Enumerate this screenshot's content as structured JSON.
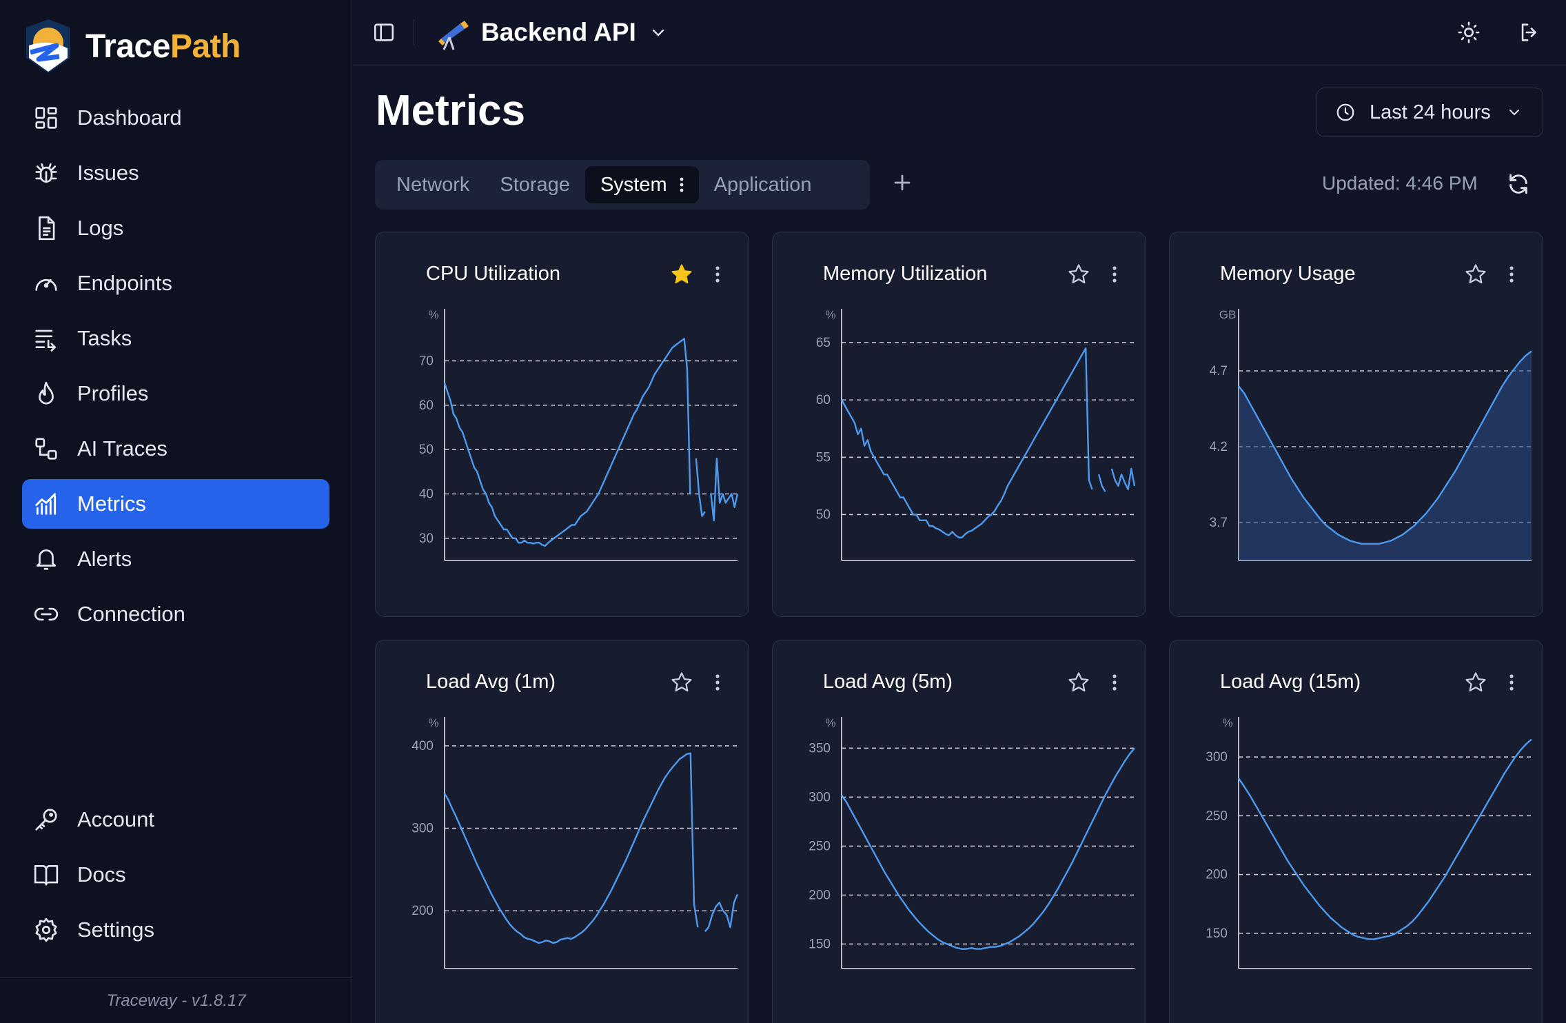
{
  "app": {
    "name_part1": "Trace",
    "name_part2": "Path",
    "version": "Traceway - v1.8.17"
  },
  "sidebar": {
    "items": [
      {
        "label": "Dashboard",
        "icon": "dashboard-icon"
      },
      {
        "label": "Issues",
        "icon": "bug-icon"
      },
      {
        "label": "Logs",
        "icon": "document-icon"
      },
      {
        "label": "Endpoints",
        "icon": "gauge-icon"
      },
      {
        "label": "Tasks",
        "icon": "tasks-icon"
      },
      {
        "label": "Profiles",
        "icon": "flame-icon"
      },
      {
        "label": "AI Traces",
        "icon": "workflow-icon"
      },
      {
        "label": "Metrics",
        "icon": "chart-icon",
        "active": true
      },
      {
        "label": "Alerts",
        "icon": "bell-icon"
      },
      {
        "label": "Connection",
        "icon": "link-icon"
      }
    ],
    "bottom_items": [
      {
        "label": "Account",
        "icon": "key-icon"
      },
      {
        "label": "Docs",
        "icon": "book-icon"
      },
      {
        "label": "Settings",
        "icon": "gear-icon"
      }
    ]
  },
  "topbar": {
    "project": "Backend API"
  },
  "page": {
    "title": "Metrics",
    "time_range": "Last 24 hours",
    "updated": "Updated: 4:46 PM",
    "tabs": [
      "Network",
      "Storage",
      "System",
      "Application"
    ],
    "active_tab": "System"
  },
  "colors": {
    "accent": "#2563eb",
    "line": "#4d9bf0",
    "star_filled": "#f5c518",
    "brand_orange": "#f2b23a"
  },
  "charts": [
    {
      "title": "CPU Utilization",
      "starred": true
    },
    {
      "title": "Memory Utilization",
      "starred": false
    },
    {
      "title": "Memory Usage",
      "starred": false
    },
    {
      "title": "Load Avg (1m)",
      "starred": false
    },
    {
      "title": "Load Avg (5m)",
      "starred": false
    },
    {
      "title": "Load Avg (15m)",
      "starred": false
    }
  ],
  "chart_data": [
    {
      "type": "line",
      "title": "CPU Utilization",
      "unit": "%",
      "ylim": [
        25,
        78
      ],
      "ticks": [
        30,
        40,
        50,
        60,
        70
      ],
      "grid": true,
      "values": [
        65,
        63,
        61,
        58,
        57,
        55,
        54,
        52,
        50,
        48,
        46,
        45,
        43,
        41,
        40,
        38,
        37,
        35,
        34,
        33,
        32,
        32,
        31,
        30,
        30,
        29,
        29,
        29.5,
        29,
        29,
        28.8,
        29,
        29,
        28.5,
        28.3,
        29,
        29.5,
        30,
        30.5,
        31,
        31.5,
        32,
        32.5,
        33,
        33,
        34,
        35,
        35.5,
        36,
        37,
        38,
        39,
        40,
        41.5,
        43,
        44.5,
        46,
        47.5,
        49,
        50.5,
        52,
        53.5,
        55,
        56.5,
        58,
        59,
        60.5,
        62,
        63,
        64,
        65.5,
        67,
        68,
        69,
        70,
        71,
        72,
        73,
        73.5,
        74,
        74.5,
        75,
        68,
        40,
        null,
        48,
        40,
        35,
        36,
        null,
        40,
        34,
        48,
        38,
        40,
        38,
        39,
        40,
        37,
        40
      ]
    },
    {
      "type": "line",
      "title": "Memory Utilization",
      "unit": "%",
      "ylim": [
        46,
        66.5
      ],
      "ticks": [
        50,
        55,
        60,
        65
      ],
      "grid": true,
      "values": [
        60,
        59.5,
        59,
        58.5,
        58,
        57,
        57.5,
        56,
        56.5,
        55.5,
        55,
        54.5,
        54,
        53.5,
        53.5,
        53,
        52.5,
        52,
        51.5,
        51.5,
        51,
        50.5,
        50,
        50,
        49.5,
        49.5,
        49.5,
        49,
        49,
        48.8,
        48.7,
        48.5,
        48.3,
        48.2,
        48.5,
        48.2,
        48,
        48,
        48.3,
        48.5,
        48.6,
        48.8,
        49,
        49.2,
        49.5,
        49.8,
        50,
        50.3,
        50.8,
        51.2,
        51.8,
        52.5,
        53,
        53.5,
        54,
        54.5,
        55,
        55.5,
        56,
        56.5,
        57,
        57.5,
        58,
        58.5,
        59,
        59.5,
        60,
        60.5,
        61,
        61.5,
        62,
        62.5,
        63,
        63.5,
        64,
        64.5,
        53,
        52.2,
        null,
        53.5,
        52.5,
        52,
        null,
        54,
        53,
        52.5,
        53.5,
        52.8,
        52.2,
        54,
        52.5
      ]
    },
    {
      "type": "area",
      "title": "Memory Usage",
      "unit": "GB",
      "ylim": [
        3.45,
        5.0
      ],
      "ticks": [
        3.7,
        4.2,
        4.7
      ],
      "grid": true,
      "values": [
        4.6,
        4.55,
        4.48,
        4.41,
        4.34,
        4.27,
        4.2,
        4.13,
        4.06,
        3.99,
        3.93,
        3.87,
        3.82,
        3.77,
        3.72,
        3.68,
        3.65,
        3.62,
        3.6,
        3.58,
        3.57,
        3.56,
        3.56,
        3.56,
        3.56,
        3.57,
        3.58,
        3.6,
        3.62,
        3.65,
        3.68,
        3.72,
        3.76,
        3.81,
        3.86,
        3.92,
        3.98,
        4.04,
        4.11,
        4.18,
        4.25,
        4.32,
        4.39,
        4.46,
        4.53,
        4.6,
        4.66,
        4.71,
        4.76,
        4.8,
        4.83
      ]
    },
    {
      "type": "line",
      "title": "Load Avg (1m)",
      "unit": "%",
      "ylim": [
        130,
        415
      ],
      "ticks": [
        200,
        300,
        400
      ],
      "grid": true,
      "values": [
        342,
        335,
        325,
        316,
        306,
        296,
        286,
        276,
        266,
        256,
        247,
        238,
        229,
        220,
        212,
        204,
        197,
        190,
        184,
        179,
        175,
        172,
        168,
        166,
        165,
        163,
        161,
        162,
        164,
        163,
        161,
        162,
        165,
        166,
        167,
        166,
        168,
        171,
        174,
        178,
        183,
        188,
        194,
        201,
        208,
        216,
        224,
        233,
        242,
        251,
        260,
        270,
        280,
        290,
        300,
        310,
        319,
        328,
        337,
        346,
        354,
        362,
        368,
        374,
        379,
        384,
        387,
        390,
        391,
        208,
        180,
        null,
        175,
        180,
        195,
        205,
        210,
        200,
        195,
        180,
        210,
        220
      ]
    },
    {
      "type": "line",
      "title": "Load Avg (5m)",
      "unit": "%",
      "ylim": [
        125,
        365
      ],
      "ticks": [
        150,
        200,
        250,
        300,
        350
      ],
      "grid": true,
      "values": [
        302,
        295,
        286,
        277,
        268,
        259,
        250,
        241,
        232,
        223,
        215,
        207,
        199,
        192,
        185,
        179,
        173,
        168,
        163,
        159,
        155,
        152,
        150,
        148,
        146,
        145,
        145,
        146,
        145,
        145,
        146,
        147,
        147,
        148,
        150,
        152,
        155,
        158,
        162,
        166,
        171,
        177,
        183,
        190,
        198,
        206,
        215,
        224,
        233,
        243,
        253,
        263,
        273,
        283,
        293,
        303,
        312,
        321,
        329,
        337,
        344,
        350
      ]
    },
    {
      "type": "line",
      "title": "Load Avg (15m)",
      "unit": "%",
      "ylim": [
        120,
        320
      ],
      "ticks": [
        150,
        200,
        250,
        300
      ],
      "grid": true,
      "values": [
        282,
        275,
        268,
        260,
        252,
        244,
        236,
        228,
        220,
        212,
        205,
        198,
        191,
        185,
        179,
        173,
        168,
        163,
        159,
        155,
        152,
        149,
        147,
        146,
        145,
        145,
        146,
        147,
        148,
        150,
        153,
        156,
        160,
        165,
        171,
        177,
        184,
        191,
        198,
        206,
        214,
        222,
        230,
        238,
        246,
        254,
        262,
        270,
        278,
        286,
        293,
        300,
        306,
        311,
        315
      ]
    }
  ]
}
